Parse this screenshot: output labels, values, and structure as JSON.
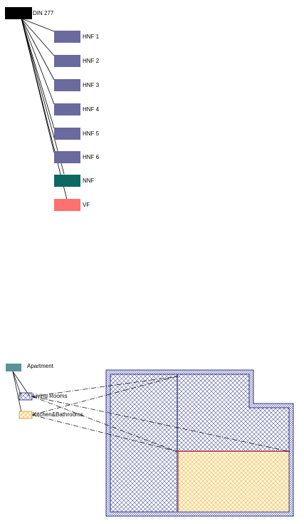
{
  "din_tree": {
    "root": {
      "label": "DIN 277",
      "color": "#000000"
    },
    "children": [
      {
        "label": "HNF 1",
        "color": "#6a6a9f"
      },
      {
        "label": "HNF 2",
        "color": "#6a6a9f"
      },
      {
        "label": "HNF 3",
        "color": "#6a6a9f"
      },
      {
        "label": "HNF 4",
        "color": "#6a6a9f"
      },
      {
        "label": "HNF 5",
        "color": "#6a6a9f"
      },
      {
        "label": "HNF 6",
        "color": "#6a6a9f"
      },
      {
        "label": "NNF",
        "color": "#0d6762"
      },
      {
        "label": "VF",
        "color": "#ff7070"
      }
    ]
  },
  "apartment": {
    "root": {
      "label": "Apartment",
      "color": "#5a9496"
    },
    "living": {
      "label": "Living Rooms",
      "hatch": "#1a1f7a"
    },
    "kitchen": {
      "label": "Kitchen&Bathrooms",
      "hatch": "#e6b33a",
      "fill": "#fff4dc"
    },
    "wall_color": "#2a2f8a",
    "separator_color": "#b02020"
  }
}
